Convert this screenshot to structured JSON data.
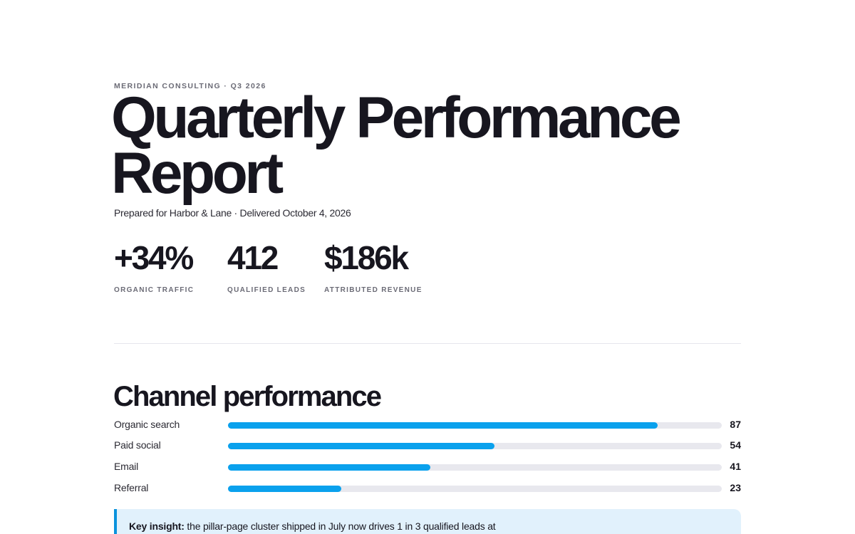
{
  "header": {
    "eyebrow": "MERIDIAN CONSULTING · Q3 2026",
    "title": "Quarterly Performance Report",
    "subtitle": "Prepared for Harbor & Lane · Delivered October 4, 2026"
  },
  "kpis": [
    {
      "value": "+34%",
      "label": "ORGANIC TRAFFIC"
    },
    {
      "value": "412",
      "label": "QUALIFIED LEADS"
    },
    {
      "value": "$186k",
      "label": "ATTRIBUTED REVENUE"
    }
  ],
  "channels": {
    "title": "Channel performance",
    "max": 100,
    "items": [
      {
        "label": "Organic search",
        "value": 87
      },
      {
        "label": "Paid social",
        "value": 54
      },
      {
        "label": "Email",
        "value": 41
      },
      {
        "label": "Referral",
        "value": 23
      }
    ]
  },
  "insight": {
    "lead": "Key insight:",
    "text": "the pillar-page cluster shipped in July now drives 1 in 3 qualified leads at"
  },
  "colors": {
    "accent": "#0aa1ed",
    "track": "#e8e8ee",
    "insight_bg": "#e1f1fc",
    "text": "#17161f"
  }
}
